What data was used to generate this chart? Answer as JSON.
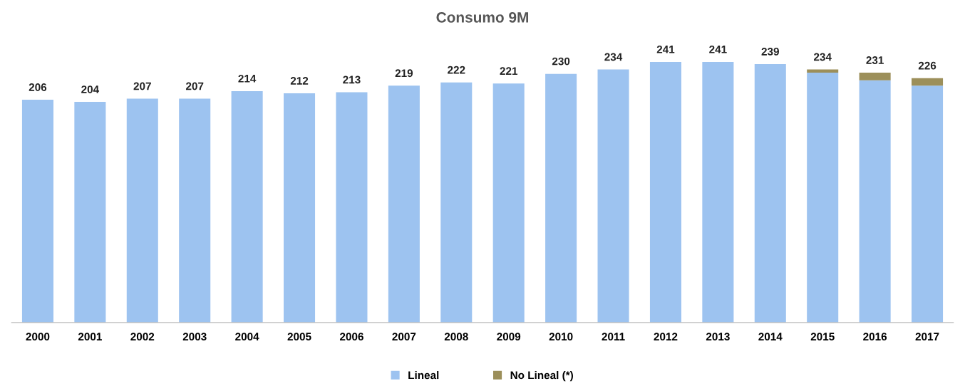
{
  "chart_data": {
    "type": "bar",
    "title": "Consumo 9M",
    "categories": [
      "2000",
      "2001",
      "2002",
      "2003",
      "2004",
      "2005",
      "2006",
      "2007",
      "2008",
      "2009",
      "2010",
      "2011",
      "2012",
      "2013",
      "2014",
      "2015",
      "2016",
      "2017"
    ],
    "stacked": true,
    "series": [
      {
        "name": "Lineal",
        "color": "#9dc3f0",
        "values": [
          206,
          204,
          207,
          207,
          214,
          212,
          213,
          219,
          222,
          221,
          230,
          234,
          241,
          241,
          239,
          231,
          224,
          219
        ],
        "value_labels": [
          "206",
          "204",
          "207",
          "207",
          "214",
          "212",
          "213",
          "219",
          "222",
          "221",
          "230",
          "234",
          "241",
          "241",
          "239",
          null,
          null,
          null
        ]
      },
      {
        "name": "No Lineal (*)",
        "color": "#9c8f5a",
        "values": [
          null,
          null,
          null,
          null,
          null,
          null,
          null,
          null,
          null,
          null,
          null,
          null,
          null,
          null,
          null,
          3,
          7,
          7
        ]
      }
    ],
    "totals": [
      null,
      null,
      null,
      null,
      null,
      null,
      null,
      null,
      null,
      null,
      null,
      null,
      null,
      null,
      null,
      "234",
      "231",
      "226"
    ],
    "legend": "bottom"
  }
}
